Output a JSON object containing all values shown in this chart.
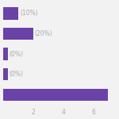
{
  "categories": [
    "",
    "",
    "",
    "",
    ""
  ],
  "values": [
    1,
    2,
    0.3,
    0.3,
    7
  ],
  "percentages": [
    "(10%)",
    "(20%)",
    "(0%)",
    "(0%)",
    ""
  ],
  "bar_color": "#6b42a8",
  "xlim": [
    0,
    7.5
  ],
  "xticks": [
    2,
    4,
    6
  ],
  "background_color": "#f2f2f2",
  "bar_height": 0.6,
  "label_fontsize": 5.5,
  "label_color": "#aaaaaa",
  "tick_color": "#aaaaaa",
  "tick_fontsize": 5.5
}
